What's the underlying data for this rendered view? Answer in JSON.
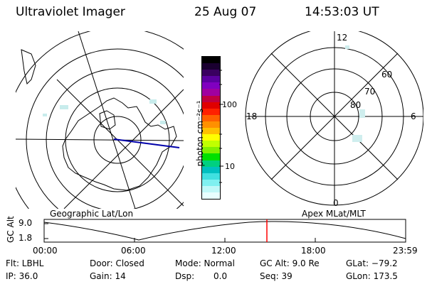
{
  "header": {
    "instrument": "Ultraviolet Imager",
    "date": "25 Aug 07",
    "time": "14:53:03 UT"
  },
  "colorbar": {
    "unit_label": "photon cm⁻²s⁻¹",
    "ticks": [
      "100",
      "10"
    ],
    "colors": [
      "#000000",
      "#1a0030",
      "#3a0060",
      "#5c00a0",
      "#8000c0",
      "#a000a0",
      "#c00040",
      "#e00000",
      "#ff2000",
      "#ff6000",
      "#ff9000",
      "#ffc000",
      "#ffff00",
      "#c0ff00",
      "#80f000",
      "#00e000",
      "#00d080",
      "#00c0c0",
      "#40e0e0",
      "#80f0f0",
      "#c0f8f8",
      "#e8ffff"
    ]
  },
  "left_map": {
    "label": "Geographic Lat/Lon"
  },
  "right_map": {
    "label": "Apex MLat/MLT",
    "mlt_labels": [
      "12",
      "18",
      "6",
      "0"
    ],
    "lat_labels": [
      "60",
      "70",
      "80"
    ]
  },
  "timeline": {
    "ylabel": "GC Alt",
    "yticks": [
      "9.0",
      "1.8"
    ],
    "xticks": [
      "00:00",
      "06:00",
      "12:00",
      "18:00",
      "23:59"
    ],
    "marker_color": "#ff0000"
  },
  "footer": {
    "row1": {
      "filter": "Flt: LBHL",
      "door": "Door: Closed",
      "mode": "Mode: Normal",
      "gc_alt": "GC Alt: 9.0 Re",
      "glat": "GLat: −79.2"
    },
    "row2": {
      "ip": "IP: 36.0",
      "gain": "Gain: 14",
      "dsp_label": "Dsp:",
      "dsp_value": "0.0",
      "seq": "Seq: 39",
      "glon": "GLon: 173.5"
    }
  }
}
